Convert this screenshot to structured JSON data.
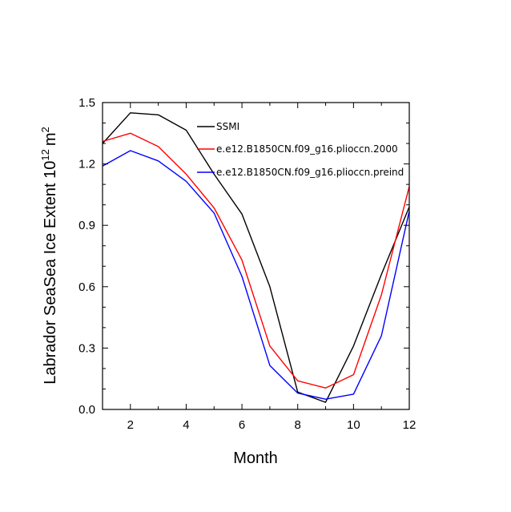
{
  "chart_data": {
    "type": "line",
    "xlabel": "Month",
    "ylabel_text": "Labrador SeaSea Ice Extent 10",
    "ylabel_exponent": "12",
    "ylabel_unit": "m",
    "ylabel_unit_exponent": "2",
    "xlim": [
      1,
      12
    ],
    "ylim": [
      0,
      1.5
    ],
    "xticks": [
      2,
      4,
      6,
      8,
      10,
      12
    ],
    "xtick_labels": [
      "2",
      "4",
      "6",
      "8",
      "10",
      "12"
    ],
    "yticks": [
      0,
      0.3,
      0.6,
      0.9,
      1.2,
      1.5
    ],
    "ytick_labels": [
      "0.0",
      "0.3",
      "0.6",
      "0.9",
      "1.2",
      "1.5"
    ],
    "x": [
      1,
      2,
      3,
      4,
      5,
      6,
      7,
      8,
      9,
      10,
      11,
      12
    ],
    "legend_position": "top-right",
    "series": [
      {
        "name": "SSMI",
        "color": "#000000",
        "values": [
          1.3,
          1.45,
          1.44,
          1.365,
          1.15,
          0.955,
          0.6,
          0.085,
          0.035,
          0.31,
          0.66,
          0.99
        ]
      },
      {
        "name": "e.e12.B1850CN.f09_g16.plioccn.2000",
        "color": "#ff0000",
        "values": [
          1.31,
          1.35,
          1.285,
          1.15,
          0.985,
          0.73,
          0.31,
          0.14,
          0.105,
          0.17,
          0.56,
          1.09
        ]
      },
      {
        "name": "e.e12.B1850CN.f09_g16.plioccn.preind",
        "color": "#0000ff",
        "values": [
          1.19,
          1.265,
          1.215,
          1.115,
          0.96,
          0.65,
          0.215,
          0.08,
          0.05,
          0.075,
          0.36,
          0.97
        ]
      }
    ]
  }
}
